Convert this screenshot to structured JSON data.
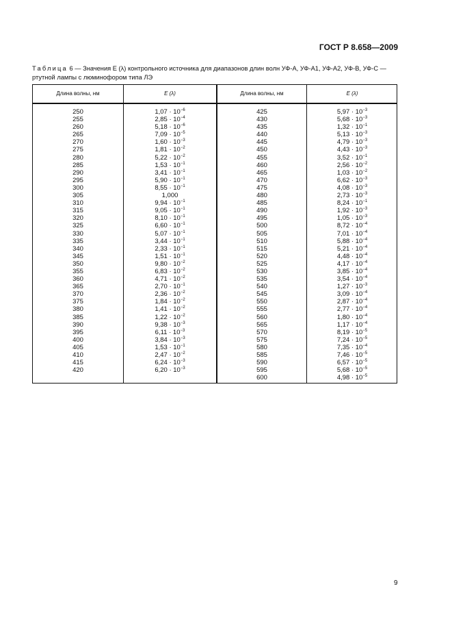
{
  "header": {
    "doc_number": "ГОСТ Р 8.658—2009"
  },
  "caption": {
    "label": "Таблица",
    "text": " 6 — Значения E (λ) контрольного источника для диапазонов длин волн УФ-А, УФ-А1, УФ-А2, УФ-В, УФ-С — ртутной лампы с люминофором типа ЛЭ"
  },
  "table": {
    "columns": [
      "Длина волны, нм",
      "E (λ)",
      "Длина волны, нм",
      "E (λ)"
    ],
    "left_rows": [
      [
        "250",
        "1,07",
        "-6"
      ],
      [
        "255",
        "2,85",
        "-4"
      ],
      [
        "260",
        "5,18",
        "-6"
      ],
      [
        "265",
        "7,09",
        "-5"
      ],
      [
        "270",
        "1,60",
        "-3"
      ],
      [
        "275",
        "1,81",
        "-2"
      ],
      [
        "280",
        "5,22",
        "-2"
      ],
      [
        "285",
        "1,53",
        "-1"
      ],
      [
        "290",
        "3,41",
        "-1"
      ],
      [
        "295",
        "5,90",
        "-1"
      ],
      [
        "300",
        "8,55",
        "-1"
      ],
      [
        "305",
        "1,000",
        ""
      ],
      [
        "310",
        "9,94",
        "-1"
      ],
      [
        "315",
        "9,05",
        "-1"
      ],
      [
        "320",
        "8,10",
        "-1"
      ],
      [
        "325",
        "6,60",
        "-1"
      ],
      [
        "330",
        "5,07",
        "-1"
      ],
      [
        "335",
        "3,44",
        "-1"
      ],
      [
        "340",
        "2,33",
        "-1"
      ],
      [
        "345",
        "1,51",
        "-1"
      ],
      [
        "350",
        "9,80",
        "-2"
      ],
      [
        "355",
        "6,83",
        "-2"
      ],
      [
        "360",
        "4,71",
        "-2"
      ],
      [
        "365",
        "2,70",
        "-1"
      ],
      [
        "370",
        "2,36",
        "-2"
      ],
      [
        "375",
        "1,84",
        "-2"
      ],
      [
        "380",
        "1,41",
        "-2"
      ],
      [
        "385",
        "1,22",
        "-2"
      ],
      [
        "390",
        "9,38",
        "-3"
      ],
      [
        "395",
        "6,11",
        "-3"
      ],
      [
        "400",
        "3,84",
        "-3"
      ],
      [
        "405",
        "1,53",
        "-1"
      ],
      [
        "410",
        "2,47",
        "-2"
      ],
      [
        "415",
        "6,24",
        "-3"
      ],
      [
        "420",
        "6,20",
        "-3"
      ]
    ],
    "right_rows": [
      [
        "425",
        "5,97",
        "-3"
      ],
      [
        "430",
        "5,68",
        "-3"
      ],
      [
        "435",
        "1,32",
        "-1"
      ],
      [
        "440",
        "5,13",
        "-3"
      ],
      [
        "445",
        "4,79",
        "-3"
      ],
      [
        "450",
        "4,43",
        "-3"
      ],
      [
        "455",
        "3,52",
        "-1"
      ],
      [
        "460",
        "2,56",
        "-2"
      ],
      [
        "465",
        "1,03",
        "-2"
      ],
      [
        "470",
        "6,62",
        "-3"
      ],
      [
        "475",
        "4,08",
        "-3"
      ],
      [
        "480",
        "2,73",
        "-3"
      ],
      [
        "485",
        "8,24",
        "-1"
      ],
      [
        "490",
        "1,92",
        "-3"
      ],
      [
        "495",
        "1,05",
        "-3"
      ],
      [
        "500",
        "8,72",
        "-4"
      ],
      [
        "505",
        "7,01",
        "-4"
      ],
      [
        "510",
        "5,88",
        "-4"
      ],
      [
        "515",
        "5,21",
        "-4"
      ],
      [
        "520",
        "4,48",
        "-4"
      ],
      [
        "525",
        "4,17",
        "-4"
      ],
      [
        "530",
        "3,85",
        "-4"
      ],
      [
        "535",
        "3,54",
        "-4"
      ],
      [
        "540",
        "1,27",
        "-3"
      ],
      [
        "545",
        "3,09",
        "-4"
      ],
      [
        "550",
        "2,87",
        "-4"
      ],
      [
        "555",
        "2,77",
        "-4"
      ],
      [
        "560",
        "1,80",
        "-4"
      ],
      [
        "565",
        "1,17",
        "-4"
      ],
      [
        "570",
        "8,19",
        "-5"
      ],
      [
        "575",
        "7,24",
        "-5"
      ],
      [
        "580",
        "7,35",
        "-4"
      ],
      [
        "585",
        "7,46",
        "-5"
      ],
      [
        "590",
        "6,57",
        "-5"
      ],
      [
        "595",
        "5,68",
        "-5"
      ],
      [
        "600",
        "4,98",
        "-5"
      ]
    ]
  },
  "footer": {
    "page_number": "9"
  }
}
